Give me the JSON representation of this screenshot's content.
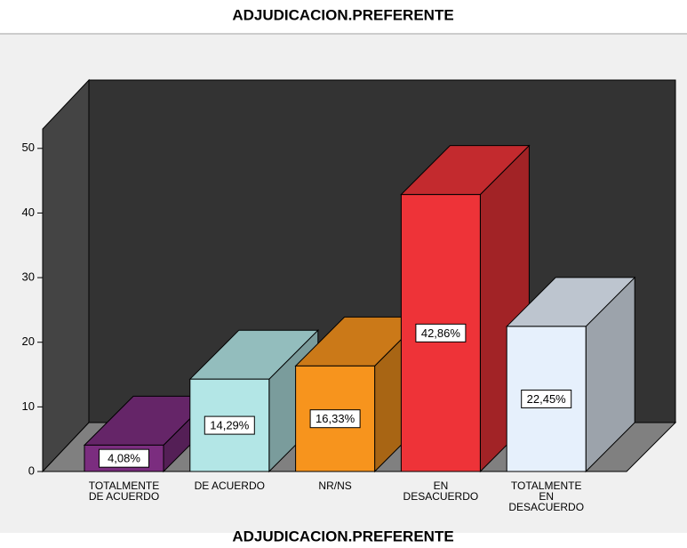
{
  "chart_data": {
    "type": "bar3d",
    "title": "ADJUDICACION.PREFERENTE",
    "x_label": "ADJUDICACION.PREFERENTE",
    "categories": [
      [
        "TOTALMENTE",
        "DE ACUERDO"
      ],
      [
        "DE ACUERDO"
      ],
      [
        "NR/NS"
      ],
      [
        "EN",
        "DESACUERDO"
      ],
      [
        "TOTALMENTE",
        "EN",
        "DESACUERDO"
      ]
    ],
    "values": [
      4.08,
      14.29,
      16.33,
      42.86,
      22.45
    ],
    "value_labels": [
      "4,08%",
      "14,29%",
      "16,33%",
      "42,86%",
      "22,45%"
    ],
    "colors": [
      "#7b2d7f",
      "#b3e6e6",
      "#f7941d",
      "#ee3338",
      "#e6f0fc"
    ],
    "ylim": [
      0,
      53
    ],
    "yticks": [
      0,
      10,
      20,
      30,
      40,
      50
    ]
  }
}
